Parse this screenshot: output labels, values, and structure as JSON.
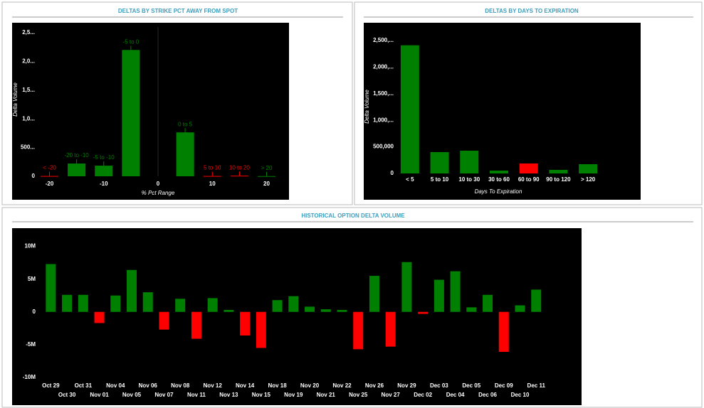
{
  "chart_data": [
    {
      "type": "bar",
      "title": "DELTAS BY STRIKE PCT AWAY FROM SPOT",
      "x_label": "% Pct Range",
      "y_label": "Delta Volume",
      "categories": [
        "< -20",
        "-20 to -10",
        "-5 to -10",
        "-5 to 0",
        "0 to 5",
        "5 to 10",
        "10 to 20",
        "> 20"
      ],
      "x": [
        -20,
        -15,
        -10,
        -5,
        5,
        10,
        15,
        20
      ],
      "values": [
        5000,
        222000,
        185000,
        2200000,
        765000,
        5000,
        10000,
        3000
      ],
      "colors": [
        "#ff0000",
        "#008000",
        "#008000",
        "#008000",
        "#008000",
        "#ff0000",
        "#ff0000",
        "#008000"
      ],
      "xlim": [
        -22,
        22
      ],
      "xticks": [
        -20,
        -10,
        0,
        10,
        20
      ],
      "ylim": [
        0,
        2600000
      ],
      "yticks": [
        0,
        {
          "value": 500000,
          "label": "500..."
        },
        {
          "value": 1000000,
          "label": "1,0..."
        },
        {
          "value": 1500000,
          "label": "1,5..."
        },
        {
          "value": 2000000,
          "label": "2,0..."
        },
        {
          "value": 2500000,
          "label": "2,5..."
        }
      ]
    },
    {
      "type": "bar",
      "title": "DELTAS BY DAYS TO EXPIRATION",
      "x_label": "Days To Expiration",
      "y_label": "Delta Volume",
      "categories": [
        "< 5",
        "5 to 10",
        "10 to 30",
        "30 to 60",
        "60 to 90",
        "90 to 120",
        "> 120"
      ],
      "values": [
        2410000,
        401000,
        428000,
        53000,
        187000,
        67000,
        174000
      ],
      "colors": [
        "#008000",
        "#008000",
        "#008000",
        "#008000",
        "#ff0000",
        "#008000",
        "#008000"
      ],
      "ylim": [
        0,
        2700000
      ],
      "yticks": [
        0,
        {
          "value": 500000,
          "label": "500,000"
        },
        {
          "value": 1000000,
          "label": "1,000,..."
        },
        {
          "value": 1500000,
          "label": "1,500,..."
        },
        {
          "value": 2000000,
          "label": "2,000,..."
        },
        {
          "value": 2500000,
          "label": "2,500,..."
        }
      ]
    },
    {
      "type": "bar",
      "title": "HISTORICAL OPTION DELTA VOLUME",
      "categories": [
        "Oct 29",
        "Oct 30",
        "Oct 31",
        "Nov 01",
        "Nov 04",
        "Nov 05",
        "Nov 06",
        "Nov 07",
        "Nov 08",
        "Nov 11",
        "Nov 12",
        "Nov 13",
        "Nov 14",
        "Nov 15",
        "Nov 18",
        "Nov 19",
        "Nov 20",
        "Nov 21",
        "Nov 22",
        "Nov 25",
        "Nov 26",
        "Nov 27",
        "Nov 29",
        "Dec 02",
        "Dec 03",
        "Dec 04",
        "Dec 05",
        "Dec 06",
        "Dec 09",
        "Dec 10",
        "Dec 11"
      ],
      "values": [
        7300000,
        2600000,
        2600000,
        -1700000,
        2500000,
        6400000,
        3000000,
        -2700000,
        2000000,
        -4100000,
        2100000,
        300000,
        -3600000,
        -5500000,
        1800000,
        2400000,
        800000,
        400000,
        300000,
        -5700000,
        5500000,
        -5300000,
        7600000,
        -300000,
        4900000,
        6200000,
        700000,
        2600000,
        -6100000,
        1000000,
        3400000
      ],
      "color": "#008000",
      "negative_color": "#ff0000",
      "ylim": [
        -10500000,
        11800000
      ],
      "yticks": [
        {
          "value": -10000000,
          "label": "-10M"
        },
        {
          "value": -5000000,
          "label": "-5M"
        },
        0,
        {
          "value": 5000000,
          "label": "5M"
        },
        {
          "value": 10000000,
          "label": "10M"
        }
      ]
    }
  ]
}
